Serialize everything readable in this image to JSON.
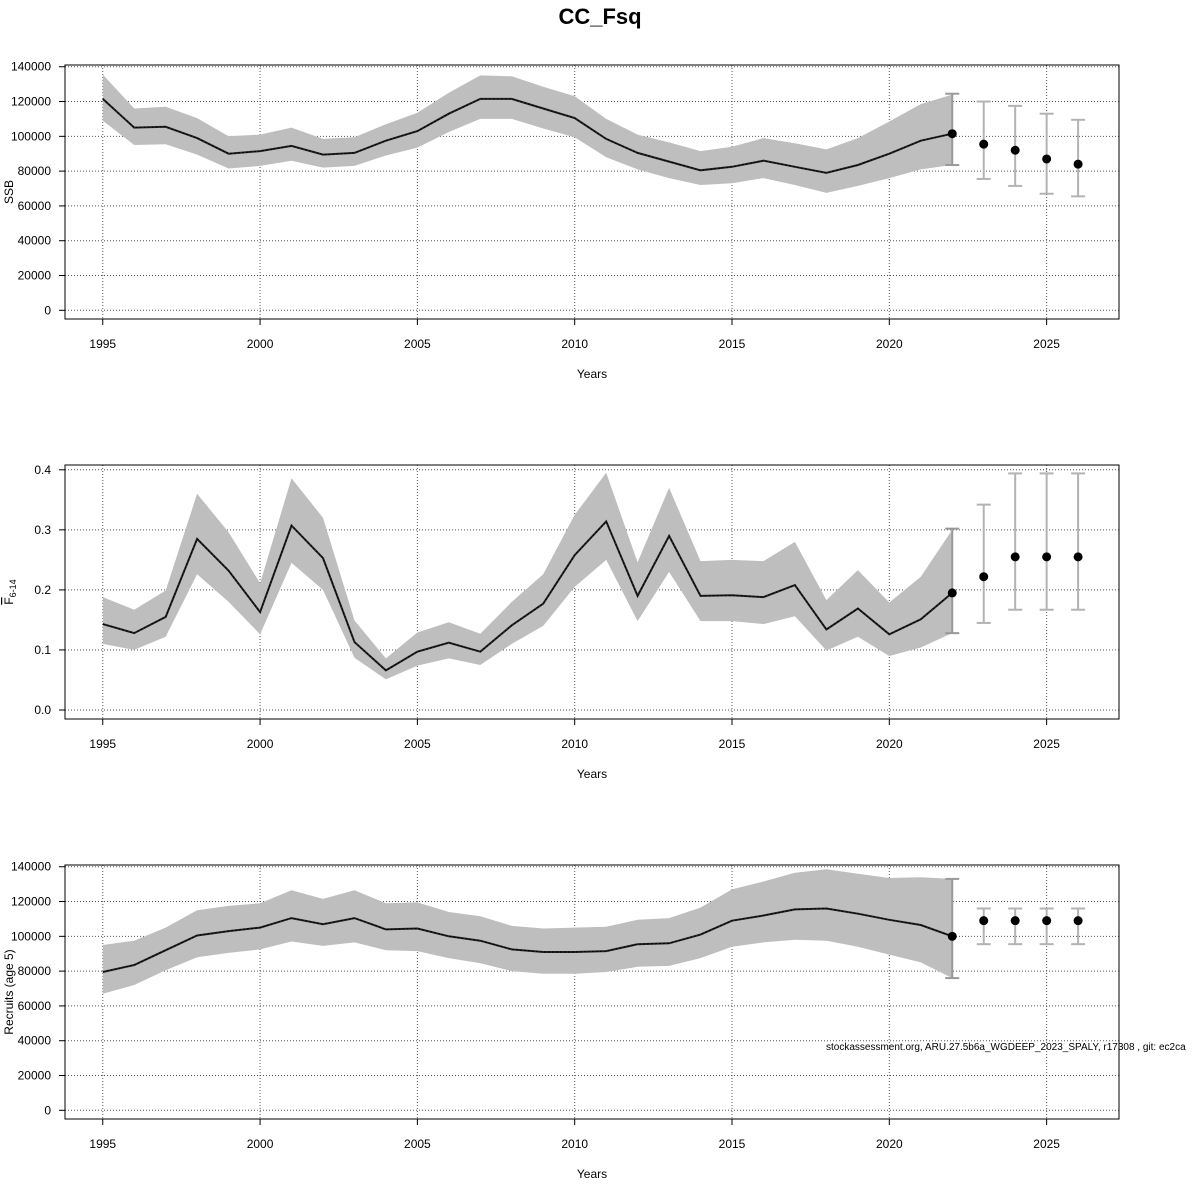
{
  "title": "CC_Fsq",
  "footer": "stockassessment.org, ARU.27.5b6a_WGDEEP_2023_SPALY, r17308 , git: ec2ca",
  "colors": {
    "band": "#bebebe",
    "line": "#222222",
    "point": "#000000",
    "errorbar": "#b3b3b3",
    "grid": "#555555"
  },
  "chart_data": [
    {
      "type": "line",
      "id": "ssb",
      "ylabel": "SSB",
      "xlabel": "Years",
      "xlim": [
        1993.8,
        2027.3
      ],
      "ylim": [
        -5000,
        141000
      ],
      "xticks": [
        1995,
        2000,
        2005,
        2010,
        2015,
        2020,
        2025
      ],
      "yticks": [
        0,
        20000,
        40000,
        60000,
        80000,
        100000,
        120000,
        140000
      ],
      "ytick_labels": [
        "0",
        "20000",
        "40000",
        "60000",
        "80000",
        "100000",
        "120000",
        "140000"
      ],
      "years": [
        1995,
        1996,
        1997,
        1998,
        1999,
        2000,
        2001,
        2002,
        2003,
        2004,
        2005,
        2006,
        2007,
        2008,
        2009,
        2010,
        2011,
        2012,
        2013,
        2014,
        2015,
        2016,
        2017,
        2018,
        2019,
        2020,
        2021,
        2022
      ],
      "estimate": [
        121500,
        105000,
        105500,
        99000,
        90000,
        91500,
        94500,
        89500,
        90500,
        97500,
        103000,
        113000,
        121500,
        121500,
        116000,
        110500,
        98500,
        90500,
        85500,
        80500,
        82500,
        86000,
        82500,
        79000,
        83500,
        90000,
        97500,
        101500
      ],
      "lower": [
        109000,
        95000,
        95500,
        89500,
        81500,
        83000,
        86000,
        82000,
        83000,
        89000,
        93500,
        102500,
        110000,
        110000,
        104500,
        99500,
        88000,
        81000,
        76000,
        72000,
        73000,
        76000,
        72000,
        67500,
        71500,
        76000,
        81000,
        83500
      ],
      "upper": [
        135500,
        116000,
        117000,
        110500,
        100000,
        101000,
        105000,
        98500,
        99500,
        107000,
        113500,
        125000,
        135000,
        134500,
        128500,
        123000,
        110000,
        101000,
        96500,
        91500,
        94000,
        99000,
        96000,
        92500,
        99000,
        108500,
        118500,
        124000
      ],
      "forecast": [
        {
          "year": 2023,
          "value": 95500,
          "low": 75500,
          "high": 120000
        },
        {
          "year": 2024,
          "value": 92000,
          "low": 71500,
          "high": 117500
        },
        {
          "year": 2025,
          "value": 87000,
          "low": 67000,
          "high": 113000
        },
        {
          "year": 2026,
          "value": 84000,
          "low": 65500,
          "high": 109500
        }
      ],
      "last_year_point": {
        "year": 2022,
        "value": 101500,
        "low": 83500,
        "high": 124500
      }
    },
    {
      "type": "line",
      "id": "fbar",
      "ylabel": "F",
      "ylabel_sub": "6-14",
      "xlabel": "Years",
      "xlim": [
        1993.8,
        2027.3
      ],
      "ylim": [
        -0.015,
        0.408
      ],
      "xticks": [
        1995,
        2000,
        2005,
        2010,
        2015,
        2020,
        2025
      ],
      "yticks": [
        0,
        0.1,
        0.2,
        0.3,
        0.4
      ],
      "ytick_labels": [
        "0.0",
        "0.1",
        "0.2",
        "0.3",
        "0.4"
      ],
      "years": [
        1995,
        1996,
        1997,
        1998,
        1999,
        2000,
        2001,
        2002,
        2003,
        2004,
        2005,
        2006,
        2007,
        2008,
        2009,
        2010,
        2011,
        2012,
        2013,
        2014,
        2015,
        2016,
        2017,
        2018,
        2019,
        2020,
        2021,
        2022
      ],
      "estimate": [
        0.143,
        0.128,
        0.155,
        0.285,
        0.232,
        0.163,
        0.307,
        0.253,
        0.113,
        0.066,
        0.097,
        0.112,
        0.097,
        0.141,
        0.177,
        0.258,
        0.314,
        0.19,
        0.29,
        0.19,
        0.191,
        0.188,
        0.208,
        0.134,
        0.169,
        0.126,
        0.151,
        0.195
      ],
      "lower": [
        0.11,
        0.1,
        0.122,
        0.226,
        0.18,
        0.126,
        0.245,
        0.2,
        0.087,
        0.051,
        0.074,
        0.086,
        0.075,
        0.11,
        0.14,
        0.205,
        0.25,
        0.148,
        0.23,
        0.148,
        0.148,
        0.143,
        0.156,
        0.099,
        0.122,
        0.09,
        0.104,
        0.128
      ],
      "upper": [
        0.188,
        0.167,
        0.199,
        0.36,
        0.296,
        0.211,
        0.386,
        0.32,
        0.149,
        0.086,
        0.129,
        0.146,
        0.127,
        0.18,
        0.226,
        0.325,
        0.395,
        0.246,
        0.37,
        0.248,
        0.25,
        0.248,
        0.28,
        0.183,
        0.233,
        0.179,
        0.222,
        0.3
      ],
      "forecast": [
        {
          "year": 2023,
          "value": 0.222,
          "low": 0.145,
          "high": 0.342
        },
        {
          "year": 2024,
          "value": 0.255,
          "low": 0.167,
          "high": 0.394
        },
        {
          "year": 2025,
          "value": 0.255,
          "low": 0.167,
          "high": 0.394
        },
        {
          "year": 2026,
          "value": 0.255,
          "low": 0.167,
          "high": 0.394
        }
      ],
      "last_year_point": {
        "year": 2022,
        "value": 0.195,
        "low": 0.128,
        "high": 0.302
      }
    },
    {
      "type": "line",
      "id": "recruits",
      "ylabel": "Recruits (age 5)",
      "xlabel": "Years",
      "xlim": [
        1993.8,
        2027.3
      ],
      "ylim": [
        -5000,
        141000
      ],
      "xticks": [
        1995,
        2000,
        2005,
        2010,
        2015,
        2020,
        2025
      ],
      "yticks": [
        0,
        20000,
        40000,
        60000,
        80000,
        100000,
        120000,
        140000
      ],
      "ytick_labels": [
        "0",
        "20000",
        "40000",
        "60000",
        "80000",
        "100000",
        "120000",
        "140000"
      ],
      "years": [
        1995,
        1996,
        1997,
        1998,
        1999,
        2000,
        2001,
        2002,
        2003,
        2004,
        2005,
        2006,
        2007,
        2008,
        2009,
        2010,
        2011,
        2012,
        2013,
        2014,
        2015,
        2016,
        2017,
        2018,
        2019,
        2020,
        2021,
        2022
      ],
      "estimate": [
        79500,
        83500,
        92000,
        100500,
        103000,
        105000,
        110500,
        107000,
        110500,
        104000,
        104500,
        100000,
        97500,
        92500,
        91000,
        91000,
        91500,
        95500,
        96000,
        101000,
        109000,
        112000,
        115500,
        116000,
        113000,
        109500,
        106500,
        100000
      ],
      "lower": [
        67000,
        72000,
        80500,
        88000,
        90500,
        92500,
        97000,
        94500,
        96500,
        92000,
        91500,
        87500,
        84500,
        80000,
        78500,
        78500,
        79500,
        82500,
        83000,
        87500,
        94000,
        96500,
        98000,
        97500,
        94000,
        89500,
        85000,
        76000
      ],
      "upper": [
        95000,
        97500,
        105000,
        115000,
        117500,
        119000,
        126500,
        121500,
        126500,
        119000,
        119500,
        114000,
        111500,
        106000,
        104500,
        105000,
        105500,
        109500,
        110500,
        116500,
        127000,
        131500,
        136500,
        138500,
        136000,
        133500,
        134000,
        133000
      ],
      "forecast": [
        {
          "year": 2023,
          "value": 109000,
          "low": 95500,
          "high": 116000
        },
        {
          "year": 2024,
          "value": 109000,
          "low": 95500,
          "high": 116000
        },
        {
          "year": 2025,
          "value": 109000,
          "low": 95500,
          "high": 116000
        },
        {
          "year": 2026,
          "value": 109000,
          "low": 95500,
          "high": 116000
        }
      ],
      "last_year_point": {
        "year": 2022,
        "value": 100000,
        "low": 76000,
        "high": 133000
      }
    }
  ]
}
